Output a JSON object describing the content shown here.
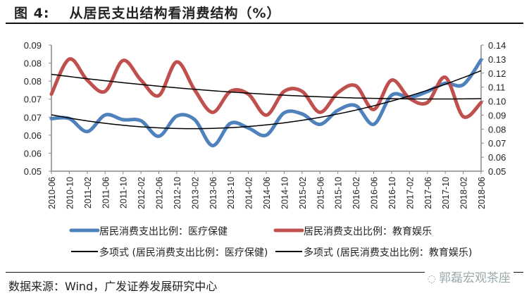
{
  "header": {
    "figure_no": "图 4:",
    "title": "从居民支出结构看消费结构（%）"
  },
  "footer": {
    "source": "数据来源：Wind，广发证券发展研究中心",
    "watermark": "郭磊宏观茶座",
    "watermark_icon": "wechat-icon"
  },
  "colors": {
    "health": "#4f81bd",
    "education": "#c0504d",
    "trend": "#000000",
    "axis": "#888888"
  },
  "chart_data": {
    "type": "line",
    "title": "从居民支出结构看消费结构（%）",
    "categories": [
      "2010-06",
      "2010-10",
      "2011-02",
      "2011-06",
      "2011-10",
      "2012-02",
      "2012-06",
      "2012-10",
      "2013-02",
      "2013-06",
      "2013-10",
      "2014-02",
      "2014-06",
      "2014-10",
      "2015-02",
      "2015-06",
      "2015-10",
      "2016-02",
      "2016-06",
      "2016-10",
      "2017-02",
      "2017-06",
      "2017-10",
      "2018-02",
      "2018-06"
    ],
    "left_axis": {
      "range": [
        0.05,
        0.085
      ],
      "step": 0.005,
      "tick_labels": [
        "0.05",
        "0.06",
        "0.06",
        "0.07",
        "0.07",
        "0.08",
        "0.08",
        "0.09"
      ]
    },
    "right_axis": {
      "range": [
        0.05,
        0.14
      ],
      "step": 0.01,
      "tick_labels": [
        "0.05",
        "0.06",
        "0.07",
        "0.08",
        "0.09",
        "0.10",
        "0.11",
        "0.12",
        "0.13",
        "0.14"
      ]
    },
    "series": [
      {
        "name": "居民消费支出比例：医疗保健",
        "axis": "left",
        "style": "smooth-thick",
        "values": [
          0.0646,
          0.0646,
          0.061,
          0.0656,
          0.0643,
          0.064,
          0.0597,
          0.0653,
          0.0643,
          0.0571,
          0.0633,
          0.062,
          0.06,
          0.0662,
          0.0659,
          0.063,
          0.0669,
          0.0682,
          0.063,
          0.0711,
          0.0705,
          0.0721,
          0.0744,
          0.074,
          0.0809
        ]
      },
      {
        "name": "居民消费支出比例：教育娱乐",
        "axis": "right",
        "style": "smooth-thick",
        "values": [
          0.105,
          0.13,
          0.115,
          0.107,
          0.129,
          0.115,
          0.104,
          0.128,
          0.108,
          0.092,
          0.107,
          0.105,
          0.09,
          0.107,
          0.107,
          0.092,
          0.106,
          0.111,
          0.094,
          0.115,
          0.102,
          0.099,
          0.117,
          0.089,
          0.099
        ]
      },
      {
        "name": "多项式 (居民消费支出比例：医疗保健)",
        "axis": "left",
        "style": "trend",
        "trend_of": 0,
        "order": 2
      },
      {
        "name": "多项式 (居民消费支出比例：教育娱乐)",
        "axis": "right",
        "style": "trend",
        "trend_of": 1,
        "order": 2
      }
    ],
    "legend_position": "bottom",
    "grid": false
  }
}
